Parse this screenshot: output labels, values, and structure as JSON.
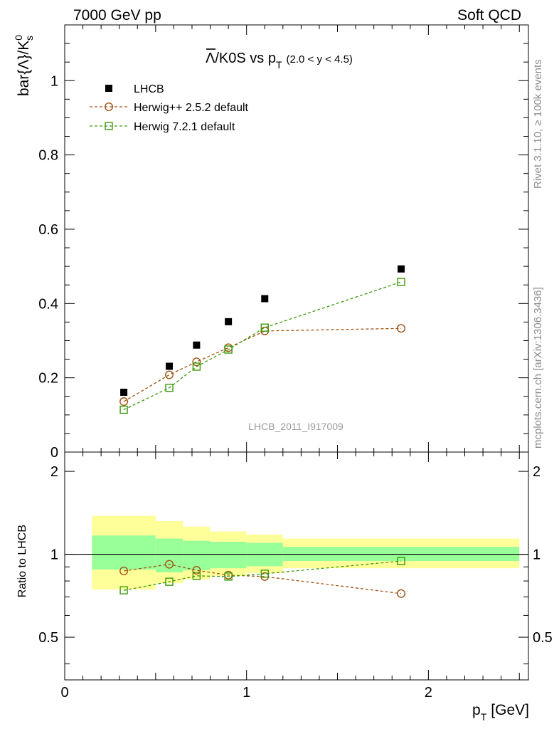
{
  "header": {
    "left": "7000 GeV pp",
    "right": "Soft QCD"
  },
  "side_labels": {
    "rivet": "Rivet 3.1.10, ≥ 100k events",
    "mcplots": "mcplots.cern.ch [arXiv:1306.3436]"
  },
  "chart_data": [
    {
      "type": "scatter",
      "panel": "main",
      "title_main": "Λ/K0S vs p",
      "title_sub": "T",
      "title_cond": "(2.0 < y < 4.5)",
      "ylabel_main": "bar{Λ}/K",
      "ylabel_sup": "0",
      "ylabel_sub": "s",
      "watermark": "LHCB_2011_I917009",
      "xlim": [
        0,
        2.55
      ],
      "ylim": [
        0,
        1.15
      ],
      "yticks": [
        0,
        0.2,
        0.4,
        0.6,
        0.8,
        1
      ],
      "ytick_labels": [
        "0",
        "0.2",
        "0.4",
        "0.6",
        "0.8",
        "1"
      ],
      "legend_position": "top-left",
      "series": [
        {
          "name": "LHCB",
          "color": "#000000",
          "marker": "filled-square",
          "x": [
            0.325,
            0.575,
            0.725,
            0.9,
            1.1,
            1.85
          ],
          "y": [
            0.161,
            0.231,
            0.288,
            0.351,
            0.413,
            0.493
          ]
        },
        {
          "name": "Herwig++ 2.5.2 default",
          "color": "#a0520f",
          "marker": "open-circle",
          "line": "dashed",
          "x": [
            0.325,
            0.575,
            0.725,
            0.9,
            1.1,
            1.85
          ],
          "y": [
            0.136,
            0.208,
            0.243,
            0.281,
            0.326,
            0.333
          ]
        },
        {
          "name": "Herwig 7.2.1 default",
          "color": "#3a9a0a",
          "marker": "open-square",
          "line": "dashed",
          "x": [
            0.325,
            0.575,
            0.725,
            0.9,
            1.1,
            1.85
          ],
          "y": [
            0.114,
            0.173,
            0.23,
            0.276,
            0.335,
            0.458
          ]
        }
      ]
    },
    {
      "type": "line",
      "panel": "ratio",
      "ylabel": "Ratio to LHCB",
      "xlabel": "p",
      "xlabel_sub": "T",
      "xlabel_unit": "[GeV]",
      "xlim": [
        0,
        2.55
      ],
      "xticks": [
        0,
        1,
        2
      ],
      "xtick_labels": [
        "0",
        "1",
        "2"
      ],
      "ylim": [
        0.35,
        2.35
      ],
      "yticks": [
        0.5,
        1,
        2
      ],
      "ytick_labels": [
        "0.5",
        "1",
        "2"
      ],
      "bands": {
        "bins": [
          [
            0.15,
            0.5
          ],
          [
            0.5,
            0.65
          ],
          [
            0.65,
            0.8
          ],
          [
            0.8,
            1.0
          ],
          [
            1.0,
            1.2
          ],
          [
            1.2,
            2.5
          ]
        ],
        "inner_color": "#99ff99",
        "outer_color": "#ffff99",
        "inner_lo": [
          0.88,
          0.86,
          0.875,
          0.89,
          0.905,
          0.945
        ],
        "inner_hi": [
          1.17,
          1.14,
          1.12,
          1.11,
          1.1,
          1.065
        ],
        "outer_lo": [
          0.745,
          0.785,
          0.81,
          0.835,
          0.855,
          0.89
        ],
        "outer_hi": [
          1.38,
          1.32,
          1.26,
          1.21,
          1.18,
          1.14
        ]
      },
      "series": [
        {
          "name": "Herwig++ 2.5.2 default",
          "color": "#a0520f",
          "marker": "open-circle",
          "x": [
            0.325,
            0.575,
            0.725,
            0.9,
            1.1,
            1.85
          ],
          "y": [
            0.87,
            0.92,
            0.875,
            0.84,
            0.83,
            0.72
          ]
        },
        {
          "name": "Herwig 7.2.1 default",
          "color": "#3a9a0a",
          "marker": "open-square",
          "x": [
            0.325,
            0.575,
            0.725,
            0.9,
            1.1,
            1.85
          ],
          "y": [
            0.74,
            0.795,
            0.835,
            0.83,
            0.85,
            0.945
          ]
        }
      ]
    }
  ]
}
